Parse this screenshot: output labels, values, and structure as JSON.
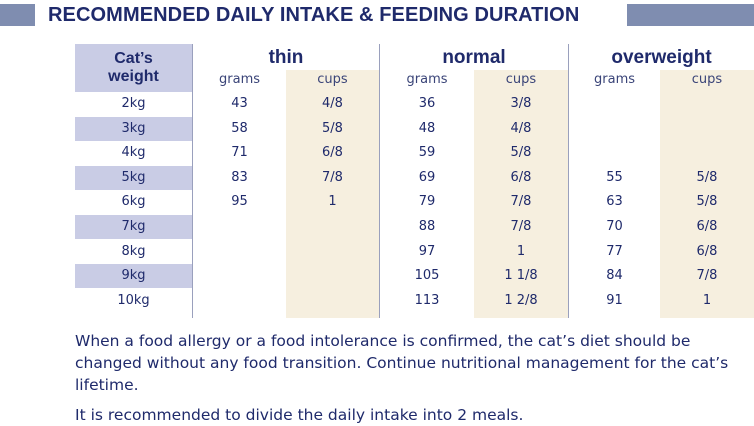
{
  "title": "RECOMMENDED DAILY INTAKE & FEEDING DURATION",
  "table": {
    "weight_header_line1": "Cat’s",
    "weight_header_line2": "weight",
    "groups": [
      "thin",
      "normal",
      "overweight"
    ],
    "sub_headers": [
      "grams",
      "cups",
      "grams",
      "cups",
      "grams",
      "cups"
    ],
    "rows": [
      {
        "weight": "2kg",
        "values": [
          "43",
          "4/8",
          "36",
          "3/8",
          "",
          ""
        ]
      },
      {
        "weight": "3kg",
        "values": [
          "58",
          "5/8",
          "48",
          "4/8",
          "",
          ""
        ]
      },
      {
        "weight": "4kg",
        "values": [
          "71",
          "6/8",
          "59",
          "5/8",
          "",
          ""
        ]
      },
      {
        "weight": "5kg",
        "values": [
          "83",
          "7/8",
          "69",
          "6/8",
          "55",
          "5/8"
        ]
      },
      {
        "weight": "6kg",
        "values": [
          "95",
          "1",
          "79",
          "7/8",
          "63",
          "5/8"
        ]
      },
      {
        "weight": "7kg",
        "values": [
          "",
          "",
          "88",
          "7/8",
          "70",
          "6/8"
        ]
      },
      {
        "weight": "8kg",
        "values": [
          "",
          "",
          "97",
          "1",
          "77",
          "6/8"
        ]
      },
      {
        "weight": "9kg",
        "values": [
          "",
          "",
          "105",
          "1 1/8",
          "84",
          "7/8"
        ]
      },
      {
        "weight": "10kg",
        "values": [
          "",
          "",
          "113",
          "1 2/8",
          "91",
          "1"
        ]
      }
    ]
  },
  "notes": [
    "When a food allergy or a food intolerance is confirmed, the cat’s diet should be changed without any food transition. Continue nutritional management for the cat’s lifetime.",
    "It is recommended to divide the daily intake into 2 meals."
  ],
  "colors": {
    "navy_text": "#1f2a6b",
    "header_bar": "#7f8db0",
    "weight_stripe": "#c9cce5",
    "cups_shade": "#f6efdf"
  }
}
